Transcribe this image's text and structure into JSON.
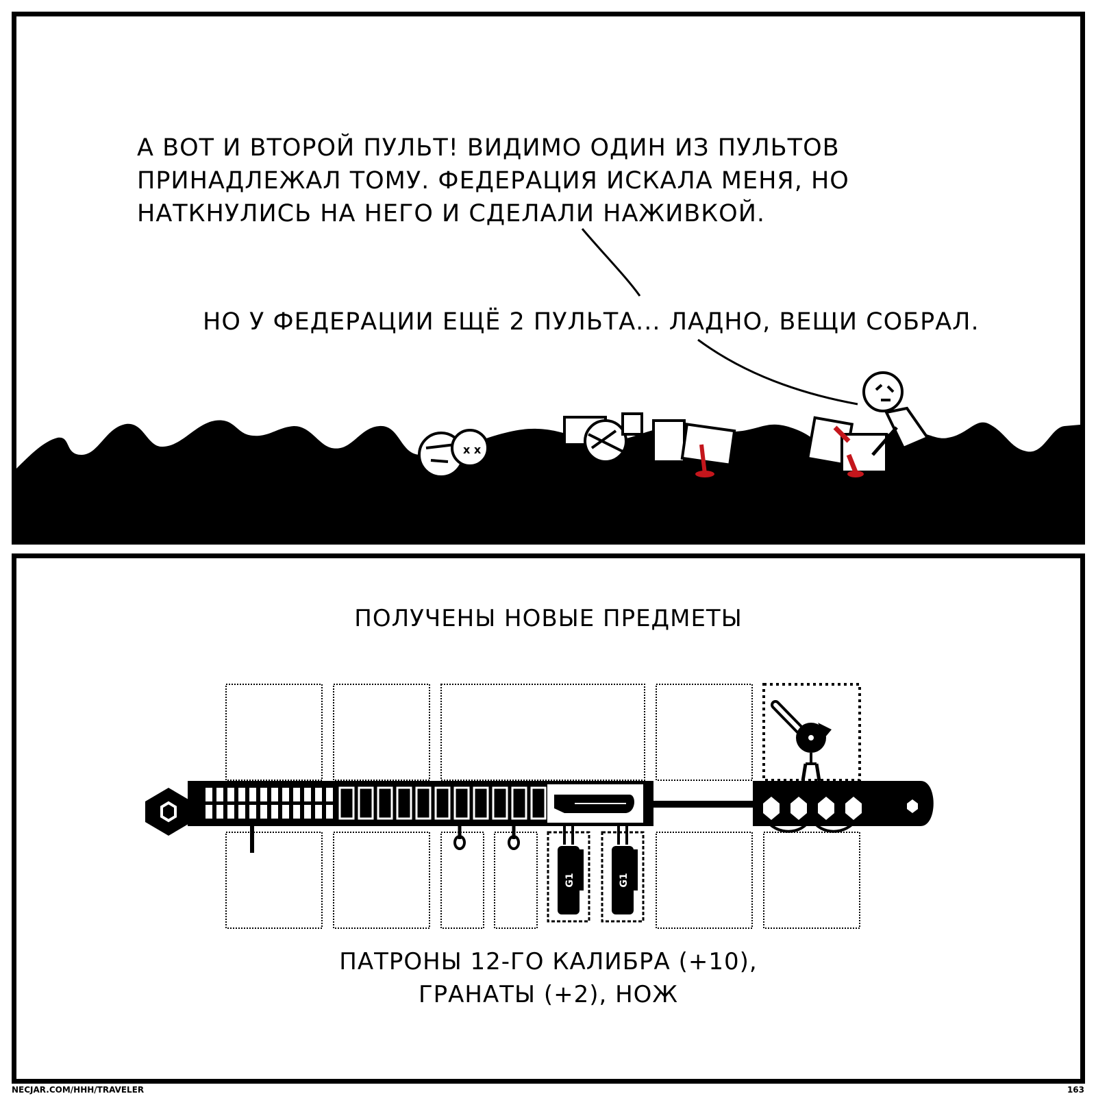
{
  "panel_top": {
    "speech_1": [
      "А ВОТ И ВТОРОЙ ПУЛЬТ! ВИДИМО ОДИН ИЗ ПУЛЬТОВ",
      "ПРИНАДЛЕЖАЛ ТОМУ. ФЕДЕРАЦИЯ ИСКАЛА МЕНЯ, НО",
      "НАТКНУЛИСЬ НА НЕГО И СДЕЛАЛИ НАЖИВКОЙ."
    ],
    "speech_2": "НО У ФЕДЕРАЦИИ ЕЩЁ 2 ПУЛЬТА... ЛАДНО, ВЕЩИ СОБРАЛ."
  },
  "panel_bottom": {
    "title": "ПОЛУЧЕНЫ НОВЫЕ ПРЕДМЕТЫ",
    "items_line_1": "ПАТРОНЫ 12-ГО КАЛИБРА (+10),",
    "items_line_2": "ГРАНАТЫ (+2), НОЖ",
    "grenade_label": "G1"
  },
  "footer": {
    "url": "NECJAR.COM/HHH/TRAVELER",
    "page": "163"
  },
  "colors": {
    "ink": "#000000",
    "paper": "#ffffff",
    "blood": "#c4161c"
  }
}
